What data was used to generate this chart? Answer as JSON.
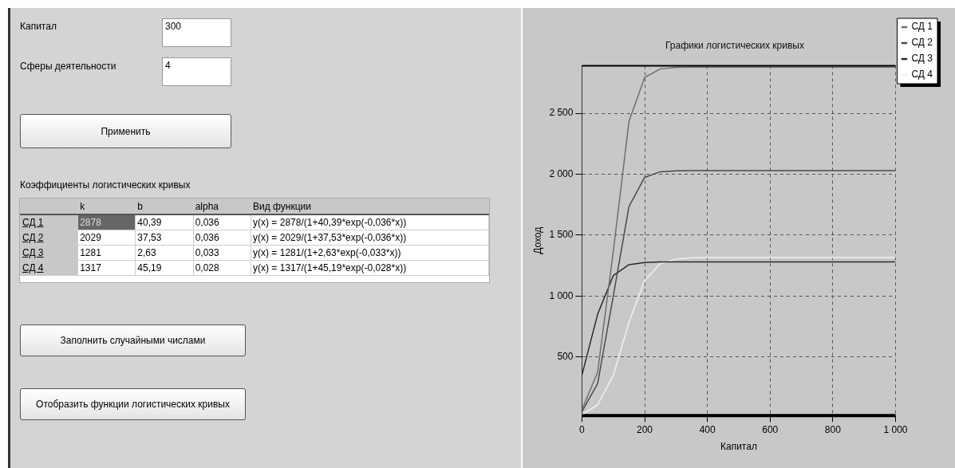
{
  "chart_data": [
    {
      "type": "other",
      "title": "Коэффициенты логистических кривых",
      "annotations": [
        "Капитал",
        "300",
        "Сферы деятельности",
        "4",
        "Применить",
        "k",
        "b",
        "alpha",
        "Вид функции",
        "СД 1",
        "2878",
        "40,39",
        "0,036",
        "y(x) = 2878/(1+40,39*exp(-0,036*x))",
        "СД 2",
        "2029",
        "37,53",
        "0,036",
        "y(x) = 2029/(1+37,53*exp(-0,036*x))",
        "СД 3",
        "1281",
        "2,63",
        "0,033",
        "y(x) = 1281/(1+2,63*exp(-0,033*x))",
        "СД 4",
        "1317",
        "45,19",
        "0,028",
        "y(x) = 1317/(1+45,19*exp(-0,028*x))",
        "Заполнить случайными числами",
        "Отобразить функции логистических кривых"
      ]
    },
    {
      "type": "line",
      "title": "Графики логистических кривых",
      "xlabel": "Капитал",
      "ylabel": "Доход",
      "x": [
        0,
        50,
        100,
        150,
        200,
        250,
        300,
        350,
        400,
        450,
        500,
        550,
        600,
        650,
        700,
        750,
        800,
        850,
        900,
        950,
        1000
      ],
      "series": [
        {
          "name": "СД 1",
          "color": "#6e6e6e",
          "values": [
            70,
            375,
            1368,
            2434,
            2794,
            2864,
            2876,
            2878,
            2878,
            2878,
            2878,
            2878,
            2878,
            2878,
            2878,
            2878,
            2878,
            2878,
            2878,
            2878,
            2878
          ]
        },
        {
          "name": "СД 2",
          "color": "#4a4a4a",
          "values": [
            53,
            282,
            1002,
            1735,
            1974,
            2020,
            2027,
            2029,
            2029,
            2029,
            2029,
            2029,
            2029,
            2029,
            2029,
            2029,
            2029,
            2029,
            2029,
            2029,
            2029
          ]
        },
        {
          "name": "СД 3",
          "color": "#2a2a2a",
          "values": [
            353,
            851,
            1168,
            1258,
            1276,
            1280,
            1281,
            1281,
            1281,
            1281,
            1281,
            1281,
            1281,
            1281,
            1281,
            1281,
            1281,
            1281,
            1281,
            1281,
            1281
          ]
        },
        {
          "name": "СД 4",
          "color": "#f2f2f2",
          "values": [
            28,
            108,
            351,
            785,
            1128,
            1265,
            1304,
            1314,
            1316,
            1317,
            1317,
            1317,
            1317,
            1317,
            1317,
            1317,
            1317,
            1317,
            1317,
            1317,
            1317
          ]
        }
      ],
      "xlim": [
        0,
        1000
      ],
      "xticks": [
        0,
        200,
        400,
        600,
        800,
        {
          "value": 1000,
          "label": "1 000"
        }
      ],
      "ylim": [
        20,
        2890
      ],
      "yticks": [
        500,
        {
          "value": 1000,
          "label": "1 000"
        },
        {
          "value": 1500,
          "label": "1 500"
        },
        {
          "value": 2000,
          "label": "2 000"
        },
        {
          "value": 2500,
          "label": "2 500"
        }
      ],
      "grid": true,
      "legend": "top right",
      "marker": "none",
      "line_style": "solid"
    }
  ]
}
